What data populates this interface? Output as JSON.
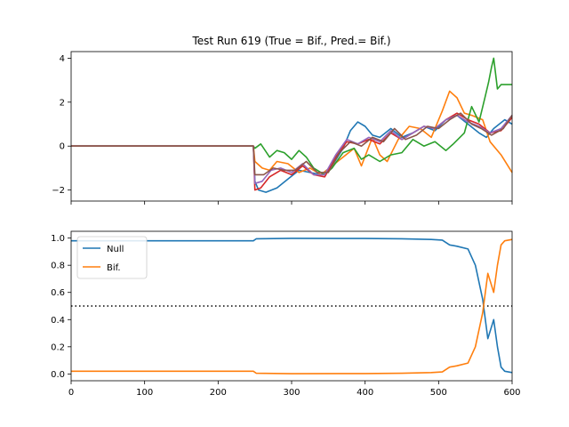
{
  "chart_data": [
    {
      "type": "line",
      "title": "Test Run 619 (True = Bif., Pred.= Bif.)",
      "xlabel": "",
      "ylabel": "",
      "xlim": [
        0,
        600
      ],
      "ylim": [
        -2.5,
        4.3
      ],
      "yticks": [
        -2,
        0,
        2,
        4
      ],
      "grid": false,
      "series": [
        {
          "color": "#1f77b4",
          "points": [
            [
              0,
              0
            ],
            [
              248,
              0
            ],
            [
              250,
              -1.6
            ],
            [
              255,
              -2.0
            ],
            [
              265,
              -2.1
            ],
            [
              280,
              -1.9
            ],
            [
              295,
              -1.5
            ],
            [
              310,
              -1.1
            ],
            [
              325,
              -1.2
            ],
            [
              340,
              -1.3
            ],
            [
              355,
              -0.9
            ],
            [
              370,
              -0.1
            ],
            [
              380,
              0.7
            ],
            [
              390,
              1.1
            ],
            [
              400,
              0.9
            ],
            [
              410,
              0.5
            ],
            [
              420,
              0.4
            ],
            [
              435,
              0.8
            ],
            [
              450,
              0.4
            ],
            [
              465,
              0.6
            ],
            [
              480,
              0.9
            ],
            [
              495,
              0.7
            ],
            [
              510,
              1.2
            ],
            [
              525,
              1.4
            ],
            [
              540,
              1.0
            ],
            [
              555,
              0.6
            ],
            [
              565,
              0.4
            ],
            [
              575,
              0.8
            ],
            [
              590,
              1.2
            ],
            [
              600,
              1.0
            ]
          ]
        },
        {
          "color": "#ff7f0e",
          "points": [
            [
              0,
              0
            ],
            [
              248,
              0
            ],
            [
              250,
              -0.7
            ],
            [
              260,
              -1.0
            ],
            [
              270,
              -1.1
            ],
            [
              280,
              -0.7
            ],
            [
              295,
              -0.8
            ],
            [
              310,
              -1.2
            ],
            [
              325,
              -1.0
            ],
            [
              340,
              -1.3
            ],
            [
              355,
              -0.9
            ],
            [
              370,
              -0.5
            ],
            [
              385,
              -0.1
            ],
            [
              395,
              -0.9
            ],
            [
              410,
              0.4
            ],
            [
              420,
              -0.4
            ],
            [
              430,
              -0.7
            ],
            [
              445,
              0.3
            ],
            [
              460,
              0.9
            ],
            [
              475,
              0.8
            ],
            [
              490,
              0.4
            ],
            [
              505,
              1.6
            ],
            [
              515,
              2.5
            ],
            [
              525,
              2.2
            ],
            [
              535,
              1.5
            ],
            [
              545,
              1.4
            ],
            [
              560,
              1.2
            ],
            [
              570,
              0.2
            ],
            [
              585,
              -0.4
            ],
            [
              600,
              -1.2
            ]
          ]
        },
        {
          "color": "#2ca02c",
          "points": [
            [
              0,
              0
            ],
            [
              248,
              0
            ],
            [
              250,
              -0.1
            ],
            [
              258,
              0.1
            ],
            [
              262,
              -0.1
            ],
            [
              270,
              -0.5
            ],
            [
              280,
              -0.2
            ],
            [
              290,
              -0.3
            ],
            [
              300,
              -0.6
            ],
            [
              310,
              -0.2
            ],
            [
              320,
              -0.5
            ],
            [
              330,
              -1.0
            ],
            [
              345,
              -1.3
            ],
            [
              355,
              -1.0
            ],
            [
              370,
              -0.3
            ],
            [
              385,
              -0.1
            ],
            [
              395,
              -0.6
            ],
            [
              405,
              -0.4
            ],
            [
              420,
              -0.7
            ],
            [
              435,
              -0.4
            ],
            [
              450,
              -0.3
            ],
            [
              465,
              0.3
            ],
            [
              480,
              0.0
            ],
            [
              495,
              0.2
            ],
            [
              510,
              -0.2
            ],
            [
              520,
              0.1
            ],
            [
              535,
              0.6
            ],
            [
              545,
              1.8
            ],
            [
              555,
              1.1
            ],
            [
              563,
              2.2
            ],
            [
              568,
              2.9
            ],
            [
              572,
              3.6
            ],
            [
              575,
              4.0
            ],
            [
              580,
              2.6
            ],
            [
              585,
              2.8
            ],
            [
              600,
              2.8
            ]
          ]
        },
        {
          "color": "#d62728",
          "points": [
            [
              0,
              0
            ],
            [
              248,
              0
            ],
            [
              250,
              -2.0
            ],
            [
              258,
              -1.9
            ],
            [
              270,
              -1.4
            ],
            [
              285,
              -1.1
            ],
            [
              300,
              -1.3
            ],
            [
              315,
              -0.9
            ],
            [
              330,
              -1.3
            ],
            [
              345,
              -1.4
            ],
            [
              360,
              -0.5
            ],
            [
              375,
              0.2
            ],
            [
              390,
              0.1
            ],
            [
              405,
              0.3
            ],
            [
              420,
              0.1
            ],
            [
              435,
              0.6
            ],
            [
              450,
              0.3
            ],
            [
              465,
              0.6
            ],
            [
              480,
              0.9
            ],
            [
              495,
              0.8
            ],
            [
              510,
              1.2
            ],
            [
              525,
              1.5
            ],
            [
              540,
              1.2
            ],
            [
              555,
              1.0
            ],
            [
              570,
              0.6
            ],
            [
              585,
              0.7
            ],
            [
              600,
              1.3
            ]
          ]
        },
        {
          "color": "#9467bd",
          "points": [
            [
              0,
              0
            ],
            [
              248,
              0
            ],
            [
              250,
              -1.7
            ],
            [
              260,
              -1.6
            ],
            [
              272,
              -1.1
            ],
            [
              285,
              -1.0
            ],
            [
              300,
              -1.2
            ],
            [
              315,
              -0.8
            ],
            [
              330,
              -1.3
            ],
            [
              345,
              -1.3
            ],
            [
              360,
              -0.4
            ],
            [
              375,
              0.3
            ],
            [
              390,
              0.1
            ],
            [
              405,
              0.4
            ],
            [
              420,
              0.2
            ],
            [
              435,
              0.7
            ],
            [
              450,
              0.3
            ],
            [
              465,
              0.6
            ],
            [
              480,
              0.9
            ],
            [
              495,
              0.8
            ],
            [
              510,
              1.2
            ],
            [
              525,
              1.4
            ],
            [
              540,
              1.1
            ],
            [
              555,
              0.9
            ],
            [
              570,
              0.6
            ],
            [
              585,
              0.8
            ],
            [
              600,
              1.4
            ]
          ]
        },
        {
          "color": "#8c564b",
          "points": [
            [
              0,
              0
            ],
            [
              248,
              0
            ],
            [
              250,
              -1.3
            ],
            [
              262,
              -1.3
            ],
            [
              275,
              -1.0
            ],
            [
              290,
              -1.1
            ],
            [
              305,
              -1.1
            ],
            [
              320,
              -0.7
            ],
            [
              335,
              -1.2
            ],
            [
              350,
              -1.2
            ],
            [
              365,
              -0.3
            ],
            [
              380,
              0.2
            ],
            [
              395,
              0.0
            ],
            [
              410,
              0.4
            ],
            [
              425,
              0.2
            ],
            [
              440,
              0.8
            ],
            [
              455,
              0.3
            ],
            [
              470,
              0.5
            ],
            [
              485,
              0.9
            ],
            [
              500,
              0.8
            ],
            [
              515,
              1.2
            ],
            [
              530,
              1.5
            ],
            [
              545,
              1.0
            ],
            [
              558,
              0.8
            ],
            [
              572,
              0.5
            ],
            [
              588,
              0.8
            ],
            [
              600,
              1.4
            ]
          ]
        }
      ]
    },
    {
      "type": "line",
      "title": "",
      "xlabel": "",
      "ylabel": "",
      "xlim": [
        0,
        600
      ],
      "ylim": [
        -0.05,
        1.05
      ],
      "xticks": [
        0,
        100,
        200,
        300,
        400,
        500,
        600
      ],
      "yticks": [
        0.0,
        0.2,
        0.4,
        0.6,
        0.8,
        1.0
      ],
      "ytick_labels": [
        "0.0",
        "0.2",
        "0.4",
        "0.6",
        "0.8",
        "1.0"
      ],
      "threshold": 0.5,
      "legend": "top-left",
      "grid": false,
      "series": [
        {
          "name": "Null",
          "color": "#1f77b4",
          "points": [
            [
              0,
              0.98
            ],
            [
              248,
              0.98
            ],
            [
              252,
              0.995
            ],
            [
              300,
              0.998
            ],
            [
              400,
              0.997
            ],
            [
              450,
              0.995
            ],
            [
              490,
              0.99
            ],
            [
              505,
              0.985
            ],
            [
              515,
              0.95
            ],
            [
              525,
              0.94
            ],
            [
              540,
              0.92
            ],
            [
              550,
              0.8
            ],
            [
              560,
              0.55
            ],
            [
              567,
              0.26
            ],
            [
              575,
              0.4
            ],
            [
              580,
              0.2
            ],
            [
              585,
              0.05
            ],
            [
              590,
              0.02
            ],
            [
              600,
              0.01
            ]
          ]
        },
        {
          "name": "Bif.",
          "color": "#ff7f0e",
          "points": [
            [
              0,
              0.02
            ],
            [
              248,
              0.02
            ],
            [
              252,
              0.005
            ],
            [
              300,
              0.002
            ],
            [
              400,
              0.003
            ],
            [
              450,
              0.005
            ],
            [
              490,
              0.01
            ],
            [
              505,
              0.015
            ],
            [
              515,
              0.05
            ],
            [
              525,
              0.06
            ],
            [
              540,
              0.08
            ],
            [
              550,
              0.2
            ],
            [
              560,
              0.45
            ],
            [
              567,
              0.74
            ],
            [
              575,
              0.6
            ],
            [
              580,
              0.8
            ],
            [
              585,
              0.95
            ],
            [
              590,
              0.98
            ],
            [
              600,
              0.99
            ]
          ]
        }
      ]
    }
  ]
}
